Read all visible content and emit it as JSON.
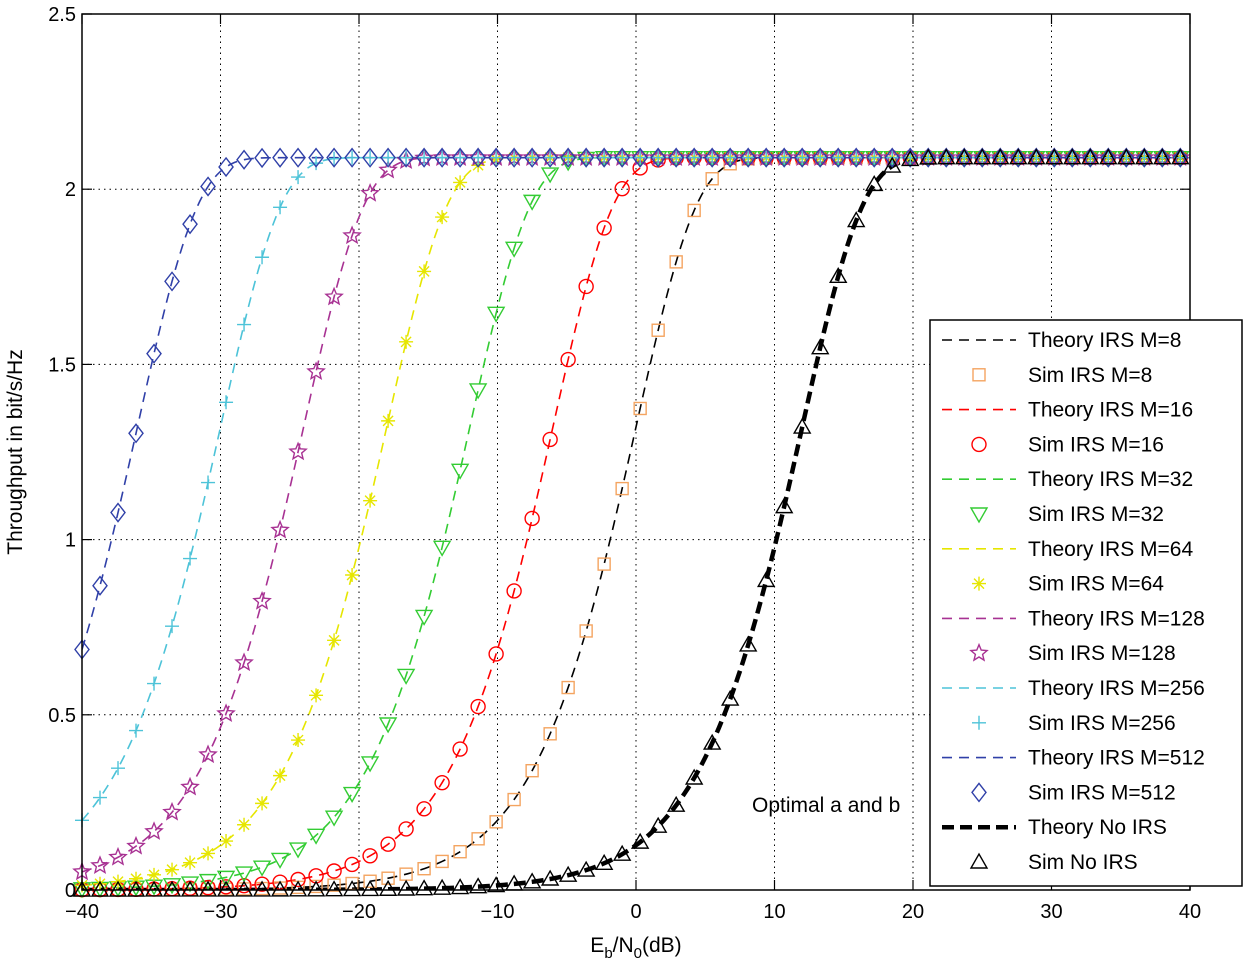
{
  "chart_data": {
    "type": "line",
    "title": "",
    "xlabel_base": "E",
    "xlabel_sub1": "b",
    "xlabel_mid": "/N",
    "xlabel_sub2": "0",
    "xlabel_tail": "(dB)",
    "ylabel": "Throughput in bit/s/Hz",
    "xlim": [
      -40,
      40
    ],
    "ylim": [
      0,
      2.5
    ],
    "grid": true,
    "xticks": [
      -40,
      -30,
      -20,
      -10,
      0,
      10,
      20,
      30,
      40
    ],
    "xtick_labels": [
      "−40",
      "−30",
      "−20",
      "−10",
      "0",
      "10",
      "20",
      "30",
      "40"
    ],
    "yticks": [
      0,
      0.5,
      1,
      1.5,
      2,
      2.5
    ],
    "ytick_labels": [
      "0",
      "0.5",
      "1",
      "1.5",
      "2",
      "2.5"
    ],
    "annotation": "Optimal a and b",
    "legend_position": "right",
    "model": {
      "comment": "Throughput = max * (1 - exp(-(10^((EbN0 + offset)/10))))",
      "max": 2.09
    },
    "series": [
      {
        "name": "Theory IRS M=8",
        "kind": "theory",
        "color": "#000000",
        "offset_db": 0,
        "dash": "10,7",
        "width": 1.6
      },
      {
        "name": "Sim IRS M=8",
        "kind": "sim",
        "color": "#f4a460",
        "marker": "square",
        "offset_db": 0
      },
      {
        "name": "Theory IRS M=16",
        "kind": "theory",
        "color": "#ff0000",
        "offset_db": 6,
        "dash": "10,7",
        "width": 1.6
      },
      {
        "name": "Sim IRS M=16",
        "kind": "sim",
        "color": "#ff0000",
        "marker": "circle",
        "offset_db": 6
      },
      {
        "name": "Theory IRS M=32",
        "kind": "theory",
        "color": "#33cc33",
        "offset_db": 12,
        "dash": "10,7",
        "width": 1.6
      },
      {
        "name": "Sim IRS M=32",
        "kind": "sim",
        "color": "#33cc33",
        "marker": "triangle-down",
        "offset_db": 12
      },
      {
        "name": "Theory IRS M=64",
        "kind": "theory",
        "color": "#e6e600",
        "offset_db": 18,
        "dash": "10,7",
        "width": 1.6
      },
      {
        "name": "Sim IRS M=64",
        "kind": "sim",
        "color": "#e6e600",
        "marker": "asterisk",
        "offset_db": 18
      },
      {
        "name": "Theory IRS M=128",
        "kind": "theory",
        "color": "#a83293",
        "offset_db": 24,
        "dash": "10,7",
        "width": 1.6
      },
      {
        "name": "Sim IRS M=128",
        "kind": "sim",
        "color": "#a83293",
        "marker": "star",
        "offset_db": 24
      },
      {
        "name": "Theory IRS M=256",
        "kind": "theory",
        "color": "#4dc3d8",
        "offset_db": 30,
        "dash": "10,7",
        "width": 1.6
      },
      {
        "name": "Sim IRS M=256",
        "kind": "sim",
        "color": "#4dc3d8",
        "marker": "plus",
        "offset_db": 30
      },
      {
        "name": "Theory IRS M=512",
        "kind": "theory",
        "color": "#3040a8",
        "offset_db": 36,
        "dash": "10,7",
        "width": 1.6
      },
      {
        "name": "Sim IRS M=512",
        "kind": "sim",
        "color": "#3040a8",
        "marker": "diamond",
        "offset_db": 36
      },
      {
        "name": "Theory No IRS",
        "kind": "theory",
        "color": "#000000",
        "offset_db": -12,
        "dash": "12,6",
        "width": 4.5
      },
      {
        "name": "Sim No IRS",
        "kind": "sim",
        "color": "#000000",
        "marker": "triangle-up",
        "offset_db": -12
      }
    ],
    "sim_x_step": 1.3
  }
}
